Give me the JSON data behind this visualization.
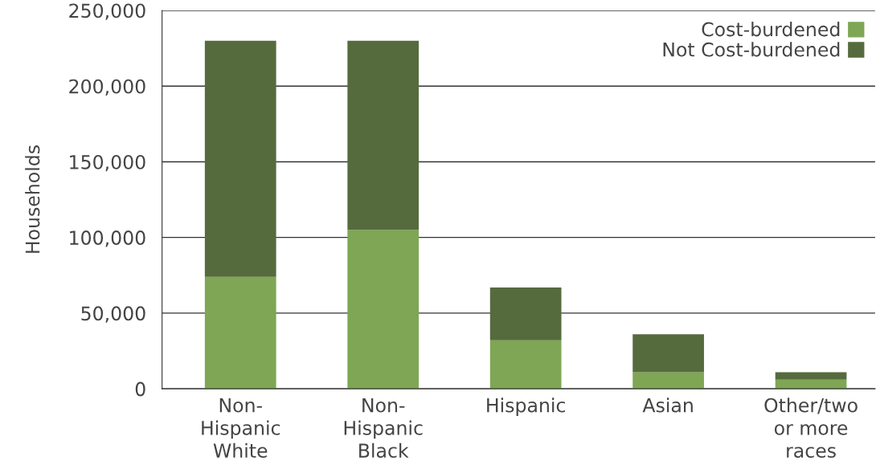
{
  "chart_data": {
    "type": "bar",
    "stacked": true,
    "ylabel": "Households",
    "categories": [
      "Non-\nHispanic\nWhite",
      "Non-\nHispanic\nBlack",
      "Hispanic",
      "Asian",
      "Other/two\nor more\nraces"
    ],
    "series": [
      {
        "name": "Cost-burdened",
        "color": "#7ea654",
        "values": [
          74000,
          105000,
          32000,
          11000,
          6000
        ]
      },
      {
        "name": "Not Cost-burdened",
        "color": "#556b3d",
        "values": [
          156000,
          125000,
          35000,
          25000,
          5000
        ]
      }
    ],
    "ylim": [
      0,
      250000
    ],
    "yticks": [
      {
        "value": 0,
        "label": "0"
      },
      {
        "value": 50000,
        "label": "50,000"
      },
      {
        "value": 100000,
        "label": "100,000"
      },
      {
        "value": 150000,
        "label": "150,000"
      },
      {
        "value": 200000,
        "label": "200,000"
      },
      {
        "value": 250000,
        "label": "250,000"
      }
    ],
    "grid": "y",
    "legend": "top right"
  }
}
